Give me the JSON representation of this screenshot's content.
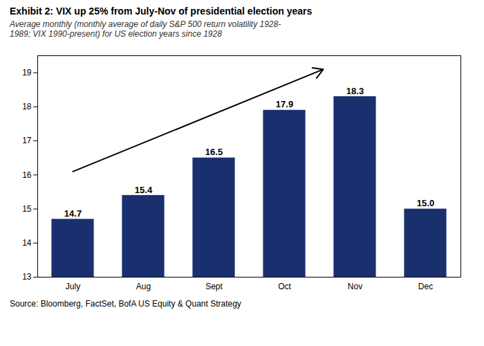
{
  "chart_data": {
    "type": "bar",
    "title": "Exhibit 2: VIX up 25% from July-Nov of presidential election years",
    "subtitle": "Average monthly (monthly average of daily S&P 500 return volatility 1928-\n1989; VIX 1990-present) for US election years since 1928",
    "source": "Source: Bloomberg, FactSet, BofA US Equity & Quant Strategy",
    "categories": [
      "July",
      "Aug",
      "Sept",
      "Oct",
      "Nov",
      "Dec"
    ],
    "values": [
      14.7,
      15.4,
      16.5,
      17.9,
      18.3,
      15.0
    ],
    "value_labels": [
      "14.7",
      "15.4",
      "16.5",
      "17.9",
      "18.3",
      "15.0"
    ],
    "data_labels": true,
    "color": "#1a2f6e",
    "ylim": [
      13,
      19.5
    ],
    "yticks": [
      13,
      14,
      15,
      16,
      17,
      18,
      19
    ],
    "grid": false,
    "annotations": [
      {
        "type": "arrow",
        "start": [
          0,
          16.1
        ],
        "end": [
          3.55,
          19.1
        ]
      }
    ]
  }
}
